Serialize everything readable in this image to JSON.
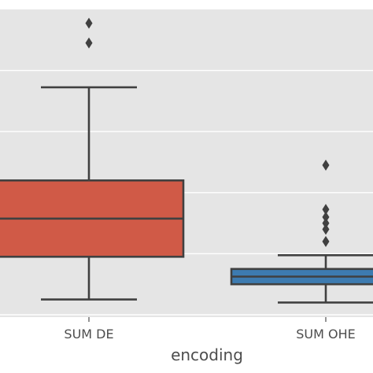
{
  "chart_data": {
    "type": "box",
    "xlabel": "encoding",
    "ylabel": "",
    "categories": [
      "SUM DE",
      "SUM OHE"
    ],
    "ylim": [
      0,
      1
    ],
    "grid": true,
    "boxes": [
      {
        "category": "SUM DE",
        "color": "#d05a47",
        "whisker_low": 0.05,
        "q1": 0.19,
        "median": 0.315,
        "q3": 0.44,
        "whisker_high": 0.745,
        "outliers": [
          0.89,
          0.955
        ]
      },
      {
        "category": "SUM OHE",
        "color": "#3d7bb0",
        "whisker_low": 0.04,
        "q1": 0.1,
        "median": 0.125,
        "q3": 0.15,
        "whisker_high": 0.195,
        "outliers": [
          0.24,
          0.28,
          0.3,
          0.32,
          0.345,
          0.49
        ]
      }
    ]
  },
  "colors": {
    "plot_background": "#e5e5e5",
    "grid": "#ffffff",
    "line": "#404040",
    "text": "#4d4d4d"
  }
}
